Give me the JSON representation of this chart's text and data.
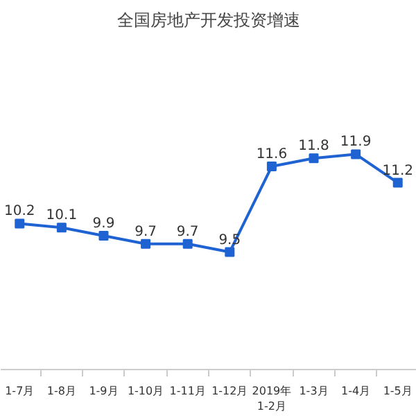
{
  "chart_data": {
    "type": "line",
    "title": "全国房地产开发投资增速",
    "categories": [
      "1-7月",
      "1-8月",
      "1-9月",
      "1-10月",
      "1-11月",
      "1-12月",
      "2019年\n1-2月",
      "1-3月",
      "1-4月",
      "1-5月"
    ],
    "series": [
      {
        "color": "#1f63d2",
        "values": [
          10.2,
          10.1,
          9.9,
          9.7,
          9.7,
          9.5,
          11.6,
          11.8,
          11.9,
          11.2
        ]
      }
    ],
    "tick_labels": "x",
    "data_labels": true,
    "marker": "square",
    "line_style": "solid"
  }
}
